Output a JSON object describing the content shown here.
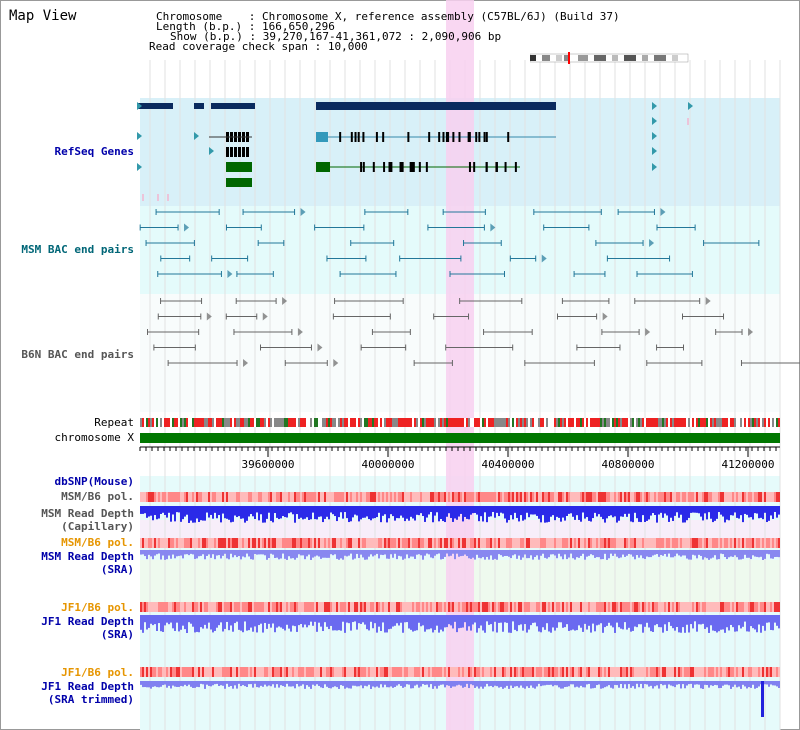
{
  "header": {
    "title": "Map View",
    "chromosome_key": "Chromosome",
    "chromosome_value": "Chromosome X, reference assembly (C57BL/6J) (Build 37)",
    "length_key": "Length (b.p.)",
    "length_value": "166,650,296",
    "show_key": "Show (b.p.)",
    "show_value": "39,270,167-41,361,072 : 2,090,906 bp",
    "coverage_key": "Read coverage check span",
    "coverage_value": "10,000"
  },
  "tracks": {
    "refseq": "RefSeq Genes",
    "msm_bac": "MSM BAC end pairs",
    "b6n_bac": "B6N BAC end pairs",
    "repeat": "Repeat",
    "chromosome": "chromosome X",
    "dbsnp": "dbSNP(Mouse)",
    "msm_b6_pol_1": "MSM/B6 pol.",
    "msm_read_depth_cap_1": "MSM Read Depth",
    "msm_read_depth_cap_2": "(Capillary)",
    "msm_b6_pol_2": "MSM/B6 pol.",
    "msm_read_depth_sra_1": "MSM Read Depth",
    "msm_read_depth_sra_2": "(SRA)",
    "jf1_b6_pol_1": "JF1/B6 pol.",
    "jf1_read_depth_sra_1": "JF1 Read Depth",
    "jf1_read_depth_sra_2": "(SRA)",
    "jf1_b6_pol_2": "JF1/B6 pol.",
    "jf1_read_depth_trim_1": "JF1 Read Depth",
    "jf1_read_depth_trim_2": "(SRA trimmed)"
  },
  "axis": {
    "ticks": [
      "39600000",
      "40000000",
      "40400000",
      "40800000",
      "41200000"
    ]
  },
  "colors": {
    "refseq_bg": "#d8f0f8",
    "msm_bg": "#e4fbfb",
    "highlight": "#f8d8f0",
    "gene_dark": "#0a2a5e",
    "gene_green": "#006600",
    "depth_blue": "#2a2ae8",
    "depth_light": "#8888f0",
    "pol_red": "#ff6666",
    "chrom_green": "#007700"
  }
}
